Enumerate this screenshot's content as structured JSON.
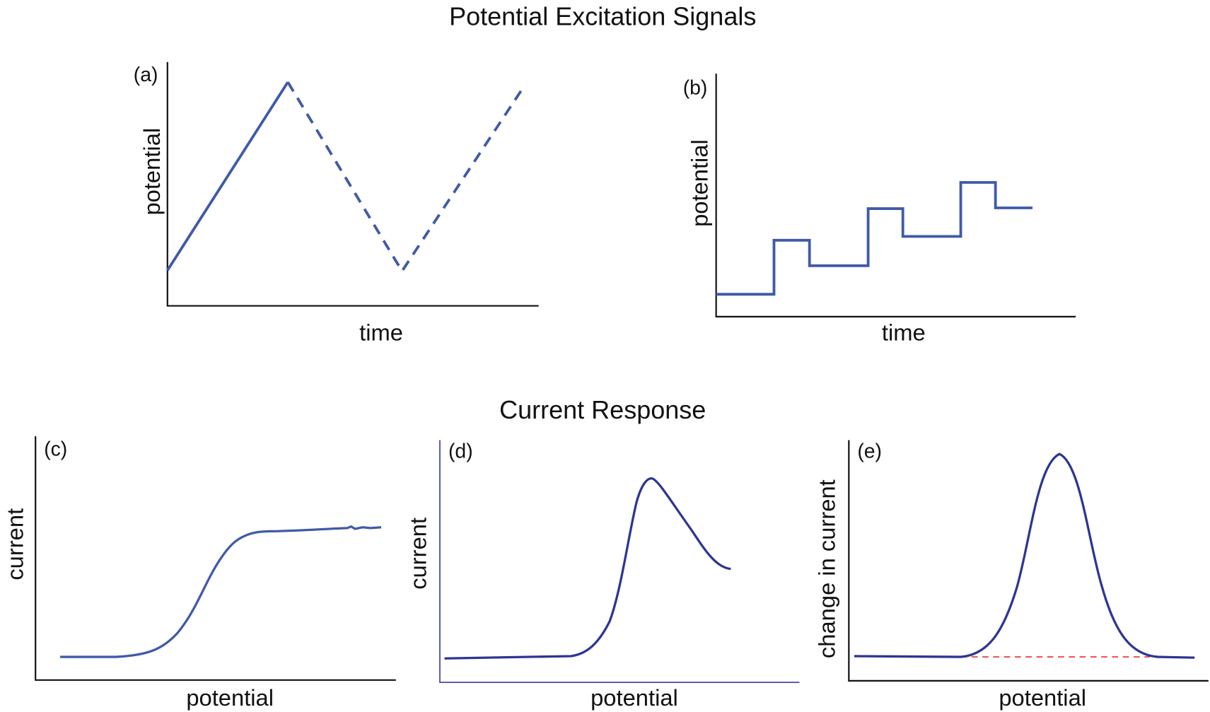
{
  "titles": {
    "top": "Potential Excitation Signals",
    "bottom": "Current Response"
  },
  "panels": {
    "a": {
      "label": "(a)",
      "ylabel": "potential",
      "xlabel": "time"
    },
    "b": {
      "label": "(b)",
      "ylabel": "potential",
      "xlabel": "time"
    },
    "c": {
      "label": "(c)",
      "ylabel": "current",
      "xlabel": "potential"
    },
    "d": {
      "label": "(d)",
      "ylabel": "current",
      "xlabel": "potential"
    },
    "e": {
      "label": "(e)",
      "ylabel": "change in current",
      "xlabel": "potential"
    }
  },
  "colors": {
    "signal": "#3f5aa8",
    "response": "#2e3592",
    "baseline": "#e03030",
    "axis": "#111111"
  }
}
